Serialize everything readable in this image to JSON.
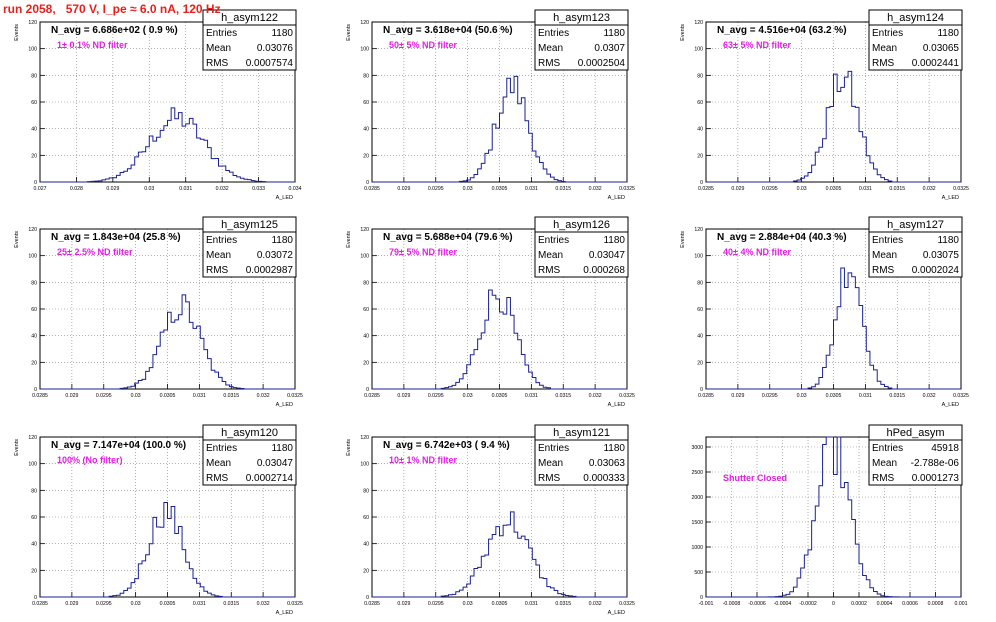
{
  "header": {
    "title": "run 2058,   570 V, I_pe ≈ 6.0 nA, 120 Hz"
  },
  "colors": {
    "hist_line": "#1a2196",
    "filter_text": "#e21ce2",
    "title_text": "#e8201c",
    "grid": "#7f7f7f"
  },
  "chart_data": [
    {
      "type": "histogram",
      "name": "h_asym122",
      "nav_label": "N_avg = 6.686e+02 ( 0.9 %)",
      "filter_label": "1± 0.1% ND filter",
      "stats": [
        [
          "Entries",
          "1180"
        ],
        [
          "Mean",
          "0.03076"
        ],
        [
          "RMS",
          "0.0007574"
        ]
      ],
      "xlim": [
        0.027,
        0.034
      ],
      "ylim": [
        0,
        120
      ],
      "xticks": [
        0.027,
        0.028,
        0.029,
        0.03,
        0.031,
        0.032,
        0.033,
        0.034
      ],
      "xtick_labels": [
        "0.027",
        "0.028",
        "0.029",
        "0.03",
        "0.031",
        "0.032",
        "0.033",
        "0.034"
      ],
      "yticks": [
        0,
        20,
        40,
        60,
        80,
        100,
        120
      ],
      "ytick_labels": [
        "0",
        "20",
        "40",
        "60",
        "80",
        "100",
        "120"
      ],
      "ylabel": "Events",
      "xlabel": "A_LED",
      "grid": true,
      "mean": 0.03076,
      "rms": 0.0007574,
      "peak": 48,
      "entries": 1180
    },
    {
      "type": "histogram",
      "name": "h_asym123",
      "nav_label": "N_avg = 3.618e+04 (50.6 %)",
      "filter_label": "50± 5% ND filter",
      "stats": [
        [
          "Entries",
          "1180"
        ],
        [
          "Mean",
          "0.0307"
        ],
        [
          "RMS",
          "0.0002504"
        ]
      ],
      "xlim": [
        0.0285,
        0.0325
      ],
      "ylim": [
        0,
        120
      ],
      "xticks": [
        0.0285,
        0.029,
        0.0295,
        0.03,
        0.0305,
        0.031,
        0.0315,
        0.032,
        0.0325
      ],
      "xtick_labels": [
        "0.0285",
        "0.029",
        "0.0295",
        "0.03",
        "0.0305",
        "0.031",
        "0.0315",
        "0.032",
        "0.0325"
      ],
      "yticks": [
        0,
        20,
        40,
        60,
        80,
        100,
        120
      ],
      "ytick_labels": [
        "0",
        "20",
        "40",
        "60",
        "80",
        "100",
        "120"
      ],
      "ylabel": "Events",
      "xlabel": "A_LED",
      "grid": true,
      "mean": 0.0307,
      "rms": 0.0002504,
      "peak": 72,
      "entries": 1180
    },
    {
      "type": "histogram",
      "name": "h_asym124",
      "nav_label": "N_avg = 4.516e+04 (63.2 %)",
      "filter_label": "63± 5% ND filter",
      "stats": [
        [
          "Entries",
          "1180"
        ],
        [
          "Mean",
          "0.03065"
        ],
        [
          "RMS",
          "0.0002441"
        ]
      ],
      "xlim": [
        0.0285,
        0.0325
      ],
      "ylim": [
        0,
        120
      ],
      "xticks": [
        0.0285,
        0.029,
        0.0295,
        0.03,
        0.0305,
        0.031,
        0.0315,
        0.032,
        0.0325
      ],
      "xtick_labels": [
        "0.0285",
        "0.029",
        "0.0295",
        "0.03",
        "0.0305",
        "0.031",
        "0.0315",
        "0.032",
        "0.0325"
      ],
      "yticks": [
        0,
        20,
        40,
        60,
        80,
        100,
        120
      ],
      "ytick_labels": [
        "0",
        "20",
        "40",
        "60",
        "80",
        "100",
        "120"
      ],
      "ylabel": "Events",
      "xlabel": "A_LED",
      "grid": true,
      "mean": 0.03065,
      "rms": 0.0002441,
      "peak": 78,
      "entries": 1180
    },
    {
      "type": "histogram",
      "name": "h_asym125",
      "nav_label": "N_avg = 1.843e+04 (25.8 %)",
      "filter_label": "25± 2.5% ND filter",
      "stats": [
        [
          "Entries",
          "1180"
        ],
        [
          "Mean",
          "0.03072"
        ],
        [
          "RMS",
          "0.0002987"
        ]
      ],
      "xlim": [
        0.0285,
        0.0325
      ],
      "ylim": [
        0,
        120
      ],
      "xticks": [
        0.0285,
        0.029,
        0.0295,
        0.03,
        0.0305,
        0.031,
        0.0315,
        0.032,
        0.0325
      ],
      "xtick_labels": [
        "0.0285",
        "0.029",
        "0.0295",
        "0.03",
        "0.0305",
        "0.031",
        "0.0315",
        "0.032",
        "0.0325"
      ],
      "yticks": [
        0,
        20,
        40,
        60,
        80,
        100,
        120
      ],
      "ytick_labels": [
        "0",
        "20",
        "40",
        "60",
        "80",
        "100",
        "120"
      ],
      "ylabel": "Events",
      "xlabel": "A_LED",
      "grid": true,
      "mean": 0.03072,
      "rms": 0.0002987,
      "peak": 62,
      "entries": 1180
    },
    {
      "type": "histogram",
      "name": "h_asym126",
      "nav_label": "N_avg = 5.688e+04 (79.6 %)",
      "filter_label": "79± 5% ND filter",
      "stats": [
        [
          "Entries",
          "1180"
        ],
        [
          "Mean",
          "0.03047"
        ],
        [
          "RMS",
          "0.000268"
        ]
      ],
      "xlim": [
        0.0285,
        0.0325
      ],
      "ylim": [
        0,
        120
      ],
      "xticks": [
        0.0285,
        0.029,
        0.0295,
        0.03,
        0.0305,
        0.031,
        0.0315,
        0.032,
        0.0325
      ],
      "xtick_labels": [
        "0.0285",
        "0.029",
        "0.0295",
        "0.03",
        "0.0305",
        "0.031",
        "0.0315",
        "0.032",
        "0.0325"
      ],
      "yticks": [
        0,
        20,
        40,
        60,
        80,
        100,
        120
      ],
      "ytick_labels": [
        "0",
        "20",
        "40",
        "60",
        "80",
        "100",
        "120"
      ],
      "ylabel": "Events",
      "xlabel": "A_LED",
      "grid": true,
      "mean": 0.03047,
      "rms": 0.000268,
      "peak": 72,
      "entries": 1180
    },
    {
      "type": "histogram",
      "name": "h_asym127",
      "nav_label": "N_avg = 2.884e+04 (40.3 %)",
      "filter_label": "40± 4% ND filter",
      "stats": [
        [
          "Entries",
          "1180"
        ],
        [
          "Mean",
          "0.03075"
        ],
        [
          "RMS",
          "0.0002024"
        ]
      ],
      "xlim": [
        0.0285,
        0.0325
      ],
      "ylim": [
        0,
        120
      ],
      "xticks": [
        0.0285,
        0.029,
        0.0295,
        0.03,
        0.0305,
        0.031,
        0.0315,
        0.032,
        0.0325
      ],
      "xtick_labels": [
        "0.0285",
        "0.029",
        "0.0295",
        "0.03",
        "0.0305",
        "0.031",
        "0.0315",
        "0.032",
        "0.0325"
      ],
      "yticks": [
        0,
        20,
        40,
        60,
        80,
        100,
        120
      ],
      "ytick_labels": [
        "0",
        "20",
        "40",
        "60",
        "80",
        "100",
        "120"
      ],
      "ylabel": "Events",
      "xlabel": "A_LED",
      "grid": true,
      "mean": 0.03075,
      "rms": 0.0002024,
      "peak": 95,
      "entries": 1180
    },
    {
      "type": "histogram",
      "name": "h_asym120",
      "nav_label": "N_avg = 7.147e+04 (100.0 %)",
      "filter_label": "100% (No filter)",
      "stats": [
        [
          "Entries",
          "1180"
        ],
        [
          "Mean",
          "0.03047"
        ],
        [
          "RMS",
          "0.0002714"
        ]
      ],
      "xlim": [
        0.0285,
        0.0325
      ],
      "ylim": [
        0,
        120
      ],
      "xticks": [
        0.0285,
        0.029,
        0.0295,
        0.03,
        0.0305,
        0.031,
        0.0315,
        0.032,
        0.0325
      ],
      "xtick_labels": [
        "0.0285",
        "0.029",
        "0.0295",
        "0.03",
        "0.0305",
        "0.031",
        "0.0315",
        "0.032",
        "0.0325"
      ],
      "yticks": [
        0,
        20,
        40,
        60,
        80,
        100,
        120
      ],
      "ytick_labels": [
        "0",
        "20",
        "40",
        "60",
        "80",
        "100",
        "120"
      ],
      "ylabel": "Events",
      "xlabel": "A_LED",
      "grid": true,
      "mean": 0.03047,
      "rms": 0.0002714,
      "peak": 65,
      "entries": 1180
    },
    {
      "type": "histogram",
      "name": "h_asym121",
      "nav_label": "N_avg = 6.742e+03 ( 9.4 %)",
      "filter_label": "10± 1% ND filter",
      "stats": [
        [
          "Entries",
          "1180"
        ],
        [
          "Mean",
          "0.03063"
        ],
        [
          "RMS",
          "0.000333"
        ]
      ],
      "xlim": [
        0.0285,
        0.0325
      ],
      "ylim": [
        0,
        120
      ],
      "xticks": [
        0.0285,
        0.029,
        0.0295,
        0.03,
        0.0305,
        0.031,
        0.0315,
        0.032,
        0.0325
      ],
      "xtick_labels": [
        "0.0285",
        "0.029",
        "0.0295",
        "0.03",
        "0.0305",
        "0.031",
        "0.0315",
        "0.032",
        "0.0325"
      ],
      "yticks": [
        0,
        20,
        40,
        60,
        80,
        100,
        120
      ],
      "ytick_labels": [
        "0",
        "20",
        "40",
        "60",
        "80",
        "100",
        "120"
      ],
      "ylabel": "Events",
      "xlabel": "A_LED",
      "grid": true,
      "mean": 0.03063,
      "rms": 0.000333,
      "peak": 58,
      "entries": 1180
    },
    {
      "type": "histogram",
      "name": "hPed_asym",
      "nav_label": "",
      "filter_label": "Shutter Closed",
      "stats": [
        [
          "Entries",
          "45918"
        ],
        [
          "Mean",
          "-2.788e-06"
        ],
        [
          "RMS",
          "0.0001273"
        ]
      ],
      "xlim": [
        -0.001,
        0.001
      ],
      "ylim": [
        0,
        3200
      ],
      "xticks": [
        -0.001,
        -0.0008,
        -0.0006,
        -0.0004,
        -0.0002,
        0,
        0.0002,
        0.0004,
        0.0006,
        0.0008,
        0.001
      ],
      "xtick_labels": [
        "-0.001",
        "-0.0008",
        "-0.0006",
        "-0.0004",
        "-0.0002",
        "0",
        "0.0002",
        "0.0004",
        "0.0006",
        "0.0008",
        "0.001"
      ],
      "yticks": [
        0,
        500,
        1000,
        1500,
        2000,
        2500,
        3000
      ],
      "ytick_labels": [
        "0",
        "500",
        "1000",
        "1500",
        "2000",
        "2500",
        "3000"
      ],
      "ylabel": "",
      "xlabel": "",
      "grid": true,
      "mean": -2.788e-06,
      "rms": 0.0001273,
      "peak": 3000,
      "entries": 45918
    }
  ]
}
